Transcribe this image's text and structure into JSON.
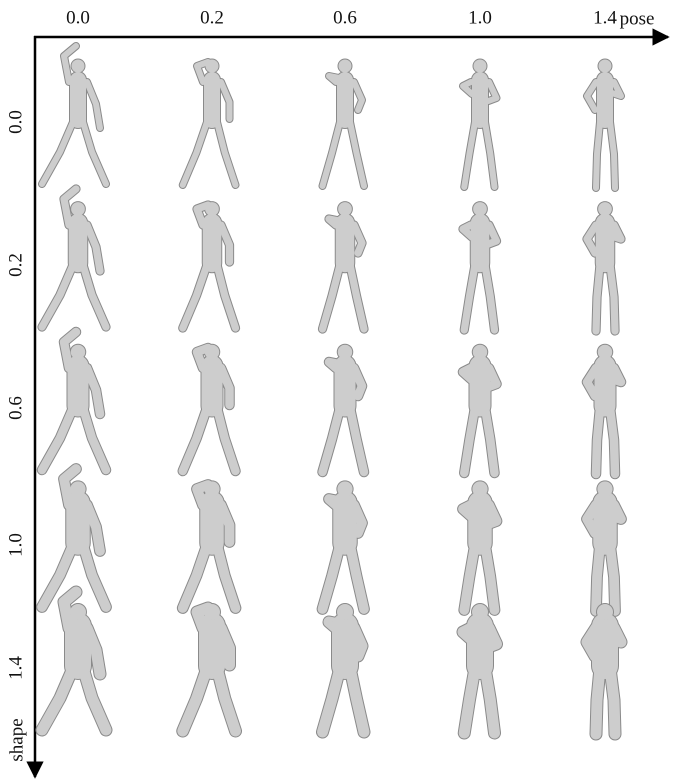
{
  "x_axis": {
    "label": "pose",
    "ticks": [
      "0.0",
      "0.2",
      "0.6",
      "1.0",
      "1.4"
    ]
  },
  "y_axis": {
    "label": "shape",
    "ticks": [
      "0.0",
      "0.2",
      "0.6",
      "1.0",
      "1.4"
    ]
  }
}
